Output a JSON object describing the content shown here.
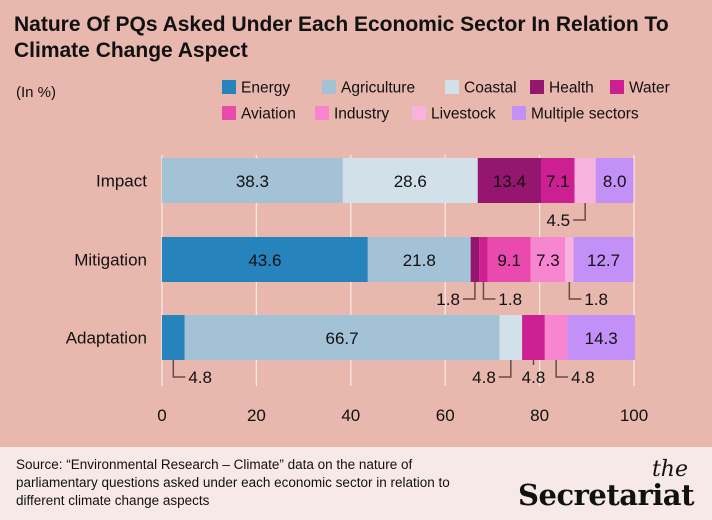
{
  "chart_data": {
    "type": "bar",
    "orientation": "horizontal-stacked",
    "title": "Nature Of PQs Asked Under Each Economic Sector In Relation To Climate Change Aspect",
    "unit_label": "(In %)",
    "categories": [
      "Impact",
      "Mitigation",
      "Adaptation"
    ],
    "xlim": [
      0,
      100
    ],
    "xticks": [
      0,
      20,
      40,
      60,
      80,
      100
    ],
    "grid": true,
    "legend_position": "top-right",
    "series": [
      {
        "name": "Energy",
        "color": "#2683bb",
        "values": [
          0,
          43.6,
          4.8
        ],
        "callout": [
          null,
          null,
          "right"
        ]
      },
      {
        "name": "Agriculture",
        "color": "#a3c2d6",
        "values": [
          38.3,
          21.8,
          66.7
        ],
        "callout": [
          null,
          null,
          null
        ]
      },
      {
        "name": "Coastal",
        "color": "#d2e0ea",
        "values": [
          28.6,
          0,
          4.8
        ],
        "callout": [
          null,
          null,
          "left"
        ]
      },
      {
        "name": "Health",
        "color": "#94166f",
        "values": [
          13.4,
          1.8,
          0
        ],
        "callout": [
          null,
          "left",
          null
        ]
      },
      {
        "name": "Water",
        "color": "#cc1f91",
        "values": [
          7.1,
          1.8,
          4.8
        ],
        "callout": [
          null,
          "right",
          "below"
        ]
      },
      {
        "name": "Aviation",
        "color": "#ea4aad",
        "values": [
          0,
          9.1,
          0
        ],
        "callout": [
          null,
          null,
          null
        ]
      },
      {
        "name": "Industry",
        "color": "#f885d0",
        "values": [
          0,
          7.3,
          4.8
        ],
        "callout": [
          null,
          null,
          "right"
        ]
      },
      {
        "name": "Livestock",
        "color": "#f7b3dd",
        "values": [
          4.5,
          1.8,
          0
        ],
        "callout": [
          "left",
          "right",
          null
        ]
      },
      {
        "name": "Multiple sectors",
        "color": "#c290f7",
        "values": [
          8.0,
          12.7,
          14.3
        ],
        "callout": [
          null,
          null,
          null
        ]
      }
    ]
  },
  "footer": {
    "source": "Source: “Environmental Research – Climate” data on the nature of parliamentary questions asked under each economic sector in relation to different climate change aspects",
    "logo_the": "the",
    "logo_name": "Secretariat"
  },
  "colors": {
    "background": "#e8b7ad",
    "footer": "#f7e9e7"
  }
}
